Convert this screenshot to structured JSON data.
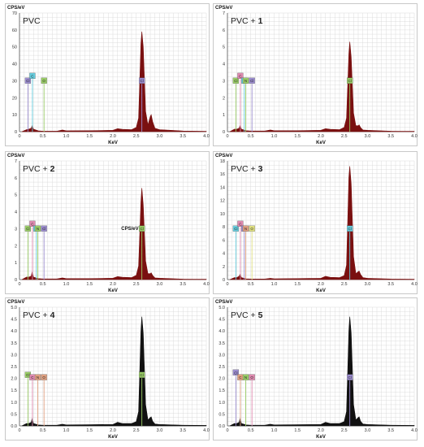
{
  "figure": {
    "colors": {
      "grid": "#d4d4d4",
      "axis": "#555555",
      "frame": "#bbbbbb",
      "dark": "#111111"
    }
  },
  "chart_data": [
    {
      "type": "area",
      "sample_label": "PVC",
      "sample_number": "",
      "ylabel": "CPS/eV",
      "xlabel": "KeV",
      "xlim": [
        0,
        4.0
      ],
      "ylim": [
        0,
        70
      ],
      "x_ticks": [
        "0",
        "0.5",
        "1.0",
        "1.5",
        "2.0",
        "2.5",
        "3.0",
        "3.5",
        "4.0"
      ],
      "y_ticks": [
        "0",
        "10",
        "20",
        "30",
        "40",
        "50",
        "60",
        "70"
      ],
      "fill_color": "#7a1010",
      "x": [
        0.05,
        0.15,
        0.2,
        0.25,
        0.27,
        0.3,
        0.4,
        0.5,
        0.8,
        0.92,
        1.0,
        1.5,
        2.0,
        2.1,
        2.2,
        2.4,
        2.5,
        2.55,
        2.6,
        2.62,
        2.65,
        2.7,
        2.75,
        2.8,
        2.82,
        2.85,
        2.9,
        3.0,
        3.5,
        4.0
      ],
      "y": [
        0,
        1.2,
        1.5,
        2.0,
        3.5,
        1.5,
        0.5,
        0.3,
        0.3,
        1.0,
        0.5,
        0.6,
        0.8,
        1.8,
        1.4,
        1.2,
        2.5,
        8,
        52,
        59,
        50,
        12,
        4,
        9,
        10,
        6,
        2,
        1.2,
        0.4,
        0.2
      ],
      "element_markers": [
        {
          "label": "Cl",
          "x": 0.18,
          "level": 0.43,
          "color": "#9b8ccf"
        },
        {
          "label": "C",
          "x": 0.277,
          "level": 0.47,
          "color": "#66ccdd"
        },
        {
          "label": "O",
          "x": 0.525,
          "level": 0.43,
          "color": "#99cc66"
        },
        {
          "label": "Cl",
          "x": 2.62,
          "level": 0.43,
          "color": "#9b8ccf"
        }
      ]
    },
    {
      "type": "area",
      "sample_label": "PVC + ",
      "sample_number": "1",
      "ylabel": "CPS/eV",
      "xlabel": "KeV",
      "xlim": [
        0,
        4.0
      ],
      "ylim": [
        0,
        7
      ],
      "x_ticks": [
        "0",
        "0.5",
        "1.0",
        "1.5",
        "2.0",
        "2.5",
        "3.0",
        "3.5",
        "4.0"
      ],
      "y_ticks": [
        "0",
        "1",
        "2",
        "3",
        "4",
        "5",
        "6",
        "7"
      ],
      "fill_color": "#7a1010",
      "x": [
        0.05,
        0.15,
        0.2,
        0.25,
        0.27,
        0.3,
        0.4,
        0.5,
        0.8,
        0.92,
        1.0,
        1.5,
        2.0,
        2.1,
        2.2,
        2.4,
        2.5,
        2.55,
        2.6,
        2.62,
        2.65,
        2.7,
        2.75,
        2.8,
        2.82,
        2.85,
        2.9,
        3.0,
        3.5,
        4.0
      ],
      "y": [
        0,
        0.15,
        0.15,
        0.2,
        0.35,
        0.15,
        0.06,
        0.04,
        0.04,
        0.1,
        0.06,
        0.06,
        0.08,
        0.18,
        0.14,
        0.12,
        0.25,
        0.8,
        4.6,
        5.3,
        4.4,
        1.1,
        0.35,
        0.35,
        0.4,
        0.25,
        0.1,
        0.08,
        0.03,
        0.02
      ],
      "element_markers": [
        {
          "label": "Cl",
          "x": 0.18,
          "level": 0.43,
          "color": "#99cc66"
        },
        {
          "label": "C",
          "x": 0.277,
          "level": 0.47,
          "color": "#e08ab0"
        },
        {
          "label": "O",
          "x": 0.36,
          "level": 0.43,
          "color": "#66ccdd"
        },
        {
          "label": "N",
          "x": 0.392,
          "level": 0.43,
          "color": "#99cc66"
        },
        {
          "label": "Cl",
          "x": 0.525,
          "level": 0.43,
          "color": "#9b8ccf"
        },
        {
          "label": "Cl",
          "x": 2.62,
          "level": 0.43,
          "color": "#99cc66"
        }
      ]
    },
    {
      "type": "area",
      "sample_label": "PVC + ",
      "sample_number": "2",
      "ylabel": "CPS/eV",
      "xlabel": "KeV",
      "xlim": [
        0,
        4.0
      ],
      "ylim": [
        0,
        7
      ],
      "x_ticks": [
        "0",
        "0.5",
        "1.0",
        "1.5",
        "2.0",
        "2.5",
        "3.0",
        "3.5",
        "4.0"
      ],
      "y_ticks": [
        "0",
        "1",
        "2",
        "3",
        "4",
        "5",
        "6",
        "7"
      ],
      "fill_color": "#7a1010",
      "x": [
        0.05,
        0.15,
        0.2,
        0.25,
        0.27,
        0.3,
        0.4,
        0.5,
        0.8,
        0.92,
        1.0,
        1.5,
        2.0,
        2.1,
        2.2,
        2.4,
        2.5,
        2.55,
        2.6,
        2.62,
        2.65,
        2.7,
        2.75,
        2.8,
        2.82,
        2.85,
        2.9,
        3.0,
        3.5,
        4.0
      ],
      "y": [
        0,
        0.15,
        0.15,
        0.2,
        0.45,
        0.15,
        0.06,
        0.04,
        0.04,
        0.1,
        0.06,
        0.06,
        0.08,
        0.18,
        0.14,
        0.12,
        0.25,
        0.8,
        4.6,
        5.4,
        4.4,
        1.1,
        0.35,
        0.35,
        0.4,
        0.25,
        0.1,
        0.08,
        0.03,
        0.02
      ],
      "element_markers": [
        {
          "label": "Cl",
          "x": 0.18,
          "level": 0.43,
          "color": "#99cc66"
        },
        {
          "label": "C",
          "x": 0.277,
          "level": 0.47,
          "color": "#e08ab0"
        },
        {
          "label": "O",
          "x": 0.36,
          "level": 0.43,
          "color": "#66ccdd"
        },
        {
          "label": "N",
          "x": 0.392,
          "level": 0.43,
          "color": "#99cc66"
        },
        {
          "label": "Cl",
          "x": 0.525,
          "level": 0.43,
          "color": "#9b8ccf"
        },
        {
          "label": "Cl",
          "x": 2.62,
          "level": 0.43,
          "color": "#99cc66"
        }
      ],
      "inner_label": "CPS/eV"
    },
    {
      "type": "area",
      "sample_label": "PVC + ",
      "sample_number": "3",
      "ylabel": "CPS/eV",
      "xlabel": "KeV",
      "xlim": [
        0,
        4.0
      ],
      "ylim": [
        0,
        18
      ],
      "x_ticks": [
        "0",
        "0.5",
        "1.0",
        "1.5",
        "2.0",
        "2.5",
        "3.0",
        "3.5",
        "4.0"
      ],
      "y_ticks": [
        "0",
        "2",
        "4",
        "6",
        "8",
        "10",
        "12",
        "14",
        "16",
        "18"
      ],
      "fill_color": "#7a1010",
      "x": [
        0.05,
        0.15,
        0.2,
        0.25,
        0.27,
        0.3,
        0.4,
        0.5,
        0.8,
        0.92,
        1.0,
        1.5,
        2.0,
        2.1,
        2.2,
        2.4,
        2.5,
        2.55,
        2.6,
        2.62,
        2.65,
        2.7,
        2.75,
        2.8,
        2.82,
        2.85,
        2.9,
        3.0,
        3.5,
        4.0
      ],
      "y": [
        0,
        0.3,
        0.3,
        0.5,
        0.8,
        0.3,
        0.12,
        0.08,
        0.08,
        0.2,
        0.12,
        0.15,
        0.2,
        0.5,
        0.35,
        0.3,
        0.6,
        2.2,
        15.5,
        17.2,
        14.5,
        3.5,
        0.9,
        1.2,
        1.3,
        0.8,
        0.3,
        0.2,
        0.08,
        0.05
      ],
      "element_markers": [
        {
          "label": "Cl",
          "x": 0.18,
          "level": 0.43,
          "color": "#66ccdd"
        },
        {
          "label": "C",
          "x": 0.277,
          "level": 0.47,
          "color": "#e08ab0"
        },
        {
          "label": "O",
          "x": 0.36,
          "level": 0.43,
          "color": "#9b8ccf"
        },
        {
          "label": "N",
          "x": 0.392,
          "level": 0.43,
          "color": "#e0a080"
        },
        {
          "label": "O",
          "x": 0.525,
          "level": 0.43,
          "color": "#e0e080"
        },
        {
          "label": "Cl",
          "x": 2.62,
          "level": 0.43,
          "color": "#66ccdd"
        }
      ]
    },
    {
      "type": "area",
      "sample_label": "PVC + ",
      "sample_number": "4",
      "ylabel": "CPS/eV",
      "xlabel": "KeV",
      "xlim": [
        0,
        4.0
      ],
      "ylim": [
        0,
        5.0
      ],
      "x_ticks": [
        "0",
        "0.5",
        "1.0",
        "1.5",
        "2.0",
        "2.5",
        "3.0",
        "3.5",
        "4.0"
      ],
      "y_ticks": [
        "0.0",
        "0.5",
        "1.0",
        "1.5",
        "2.0",
        "2.5",
        "3.0",
        "3.5",
        "4.0",
        "4.5",
        "5.0"
      ],
      "fill_color": "#111111",
      "x": [
        0.05,
        0.15,
        0.2,
        0.25,
        0.27,
        0.3,
        0.4,
        0.5,
        0.8,
        0.92,
        1.0,
        1.5,
        2.0,
        2.1,
        2.2,
        2.4,
        2.5,
        2.55,
        2.6,
        2.62,
        2.65,
        2.7,
        2.75,
        2.8,
        2.82,
        2.85,
        2.9,
        3.0,
        3.5,
        4.0
      ],
      "y": [
        0,
        0.1,
        0.1,
        0.15,
        0.3,
        0.1,
        0.04,
        0.03,
        0.03,
        0.07,
        0.04,
        0.05,
        0.06,
        0.15,
        0.1,
        0.1,
        0.18,
        0.6,
        4.0,
        4.6,
        3.9,
        0.9,
        0.25,
        0.35,
        0.38,
        0.2,
        0.08,
        0.06,
        0.03,
        0.02
      ],
      "element_markers": [
        {
          "label": "Cl",
          "x": 0.18,
          "level": 0.43,
          "color": "#99cc66"
        },
        {
          "label": "C",
          "x": 0.277,
          "level": 0.41,
          "color": "#e08ab0"
        },
        {
          "label": "N",
          "x": 0.392,
          "level": 0.41,
          "color": "#e0a080"
        },
        {
          "label": "O",
          "x": 0.525,
          "level": 0.41,
          "color": "#e0a080"
        },
        {
          "label": "Cl",
          "x": 2.62,
          "level": 0.43,
          "color": "#99cc66"
        }
      ]
    },
    {
      "type": "area",
      "sample_label": "PVC + ",
      "sample_number": "5",
      "ylabel": "CPS/eV",
      "xlabel": "KeV",
      "xlim": [
        0,
        4.0
      ],
      "ylim": [
        0,
        5.0
      ],
      "x_ticks": [
        "0",
        "0.5",
        "1.0",
        "1.5",
        "2.0",
        "2.5",
        "3.0",
        "3.5",
        "4.0"
      ],
      "y_ticks": [
        "0.0",
        "0.5",
        "1.0",
        "1.5",
        "2.0",
        "2.5",
        "3.0",
        "3.5",
        "4.0",
        "4.5",
        "5.0"
      ],
      "fill_color": "#111111",
      "x": [
        0.05,
        0.15,
        0.2,
        0.25,
        0.27,
        0.3,
        0.4,
        0.5,
        0.8,
        0.92,
        1.0,
        1.5,
        2.0,
        2.1,
        2.2,
        2.4,
        2.5,
        2.55,
        2.6,
        2.62,
        2.65,
        2.7,
        2.75,
        2.8,
        2.82,
        2.85,
        2.9,
        3.0,
        3.5,
        4.0
      ],
      "y": [
        0,
        0.1,
        0.1,
        0.15,
        0.3,
        0.1,
        0.04,
        0.03,
        0.03,
        0.07,
        0.04,
        0.05,
        0.06,
        0.15,
        0.1,
        0.1,
        0.18,
        0.6,
        4.0,
        4.6,
        3.9,
        0.9,
        0.25,
        0.35,
        0.38,
        0.2,
        0.08,
        0.06,
        0.03,
        0.02
      ],
      "element_markers": [
        {
          "label": "Cl",
          "x": 0.18,
          "level": 0.45,
          "color": "#9b8ccf"
        },
        {
          "label": "C",
          "x": 0.277,
          "level": 0.41,
          "color": "#e0a080"
        },
        {
          "label": "N",
          "x": 0.392,
          "level": 0.41,
          "color": "#99cc66"
        },
        {
          "label": "O",
          "x": 0.525,
          "level": 0.41,
          "color": "#e08ab0"
        },
        {
          "label": "Cl",
          "x": 2.62,
          "level": 0.41,
          "color": "#9b8ccf"
        }
      ]
    }
  ]
}
